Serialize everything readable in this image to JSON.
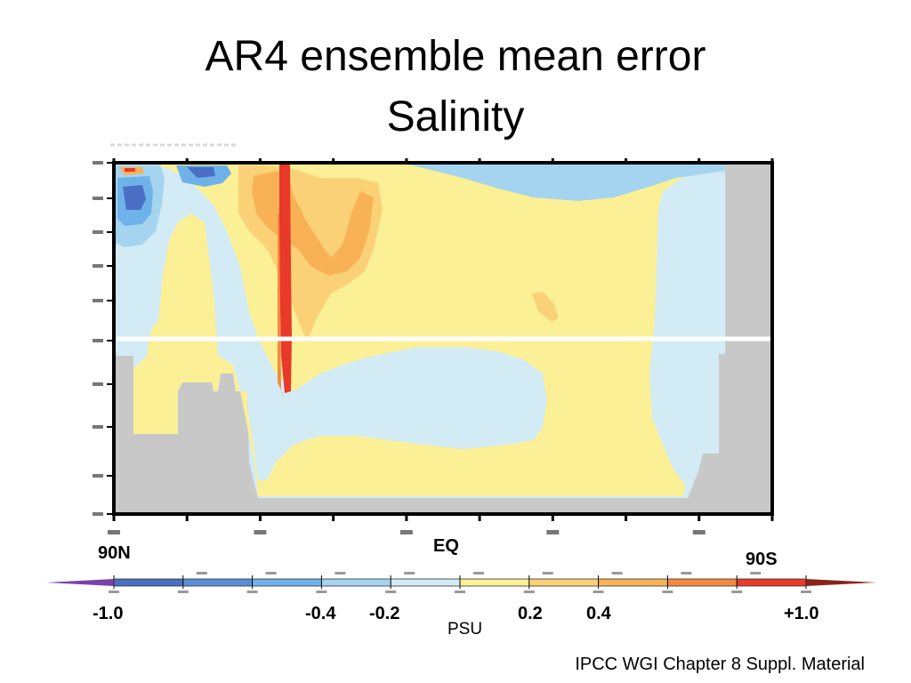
{
  "slide": {
    "title_line1": "AR4 ensemble mean error",
    "title_line2": "Salinity",
    "credit": "IPCC WGI Chapter 8 Suppl. Material"
  },
  "chart_data": {
    "type": "heatmap",
    "title": "AR4 ensemble mean error Salinity",
    "x_labels": [
      "90N",
      "EQ",
      "90S"
    ],
    "x_range": [
      "90N",
      "90S"
    ],
    "units": "PSU",
    "colorbar": {
      "min": -1.0,
      "max": 1.0,
      "extend": "both",
      "labels": [
        "-1.0",
        "-0.4",
        "-0.2",
        "0.2",
        "0.4",
        "+1.0"
      ],
      "label_values": [
        -1.0,
        -0.4,
        -0.2,
        0.2,
        0.4,
        1.0
      ],
      "bins": [
        {
          "from": -1.0,
          "to": -0.8,
          "color": "#4a6fc4"
        },
        {
          "from": -0.8,
          "to": -0.6,
          "color": "#5b8ed8"
        },
        {
          "from": -0.6,
          "to": -0.4,
          "color": "#6fb2ea"
        },
        {
          "from": -0.4,
          "to": -0.2,
          "color": "#a4d4ef"
        },
        {
          "from": -0.2,
          "to": 0.0,
          "color": "#d3ebf4"
        },
        {
          "from": 0.0,
          "to": 0.2,
          "color": "#fbf096"
        },
        {
          "from": 0.2,
          "to": 0.4,
          "color": "#fbd178"
        },
        {
          "from": 0.4,
          "to": 0.6,
          "color": "#f8b255"
        },
        {
          "from": 0.6,
          "to": 0.8,
          "color": "#f38a3f"
        },
        {
          "from": 0.8,
          "to": 1.0,
          "color": "#e8392a"
        }
      ],
      "under_color": "#7b3fae",
      "over_color": "#8b2418"
    },
    "land_color": "#c8c8c8",
    "grid": false
  }
}
